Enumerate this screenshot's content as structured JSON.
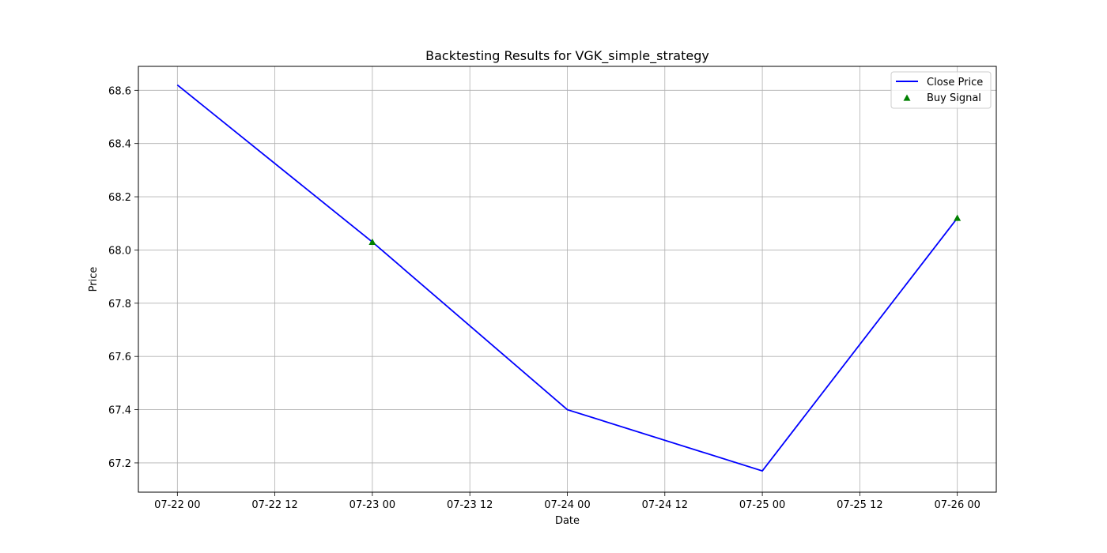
{
  "chart_data": {
    "type": "line",
    "title": "Backtesting Results for VGK_simple_strategy",
    "xlabel": "Date",
    "ylabel": "Price",
    "x": [
      "2024-07-22",
      "2024-07-23",
      "2024-07-24",
      "2024-07-25",
      "2024-07-26"
    ],
    "xlim": [
      "2024-07-21T19:12",
      "2024-07-26T04:48"
    ],
    "ylim": [
      67.09,
      68.69
    ],
    "x_ticks": [
      "07-22 00",
      "07-22 12",
      "07-23 00",
      "07-23 12",
      "07-24 00",
      "07-24 12",
      "07-25 00",
      "07-25 12",
      "07-26 00"
    ],
    "y_ticks": [
      "67.2",
      "67.4",
      "67.6",
      "67.8",
      "68.0",
      "68.2",
      "68.4",
      "68.6"
    ],
    "grid": true,
    "legend_position": "upper right",
    "series": [
      {
        "name": "Close Price",
        "kind": "line",
        "color": "#0000ff",
        "values": [
          68.62,
          68.03,
          67.4,
          67.17,
          68.12
        ]
      },
      {
        "name": "Buy Signal",
        "kind": "scatter",
        "marker": "triangle-up",
        "color": "#008000",
        "points": [
          {
            "x": "2024-07-23",
            "y": 68.03
          },
          {
            "x": "2024-07-26",
            "y": 68.12
          }
        ]
      }
    ]
  }
}
